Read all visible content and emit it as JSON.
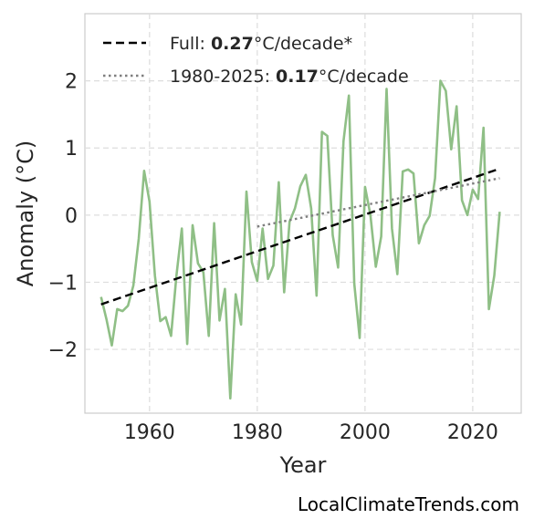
{
  "chart_data": {
    "type": "line",
    "title": "",
    "xlabel": "Year",
    "ylabel": "Anomaly (°C)",
    "xlim": [
      1948,
      2029
    ],
    "ylim": [
      -2.95,
      3.0
    ],
    "xticks": [
      1960,
      1980,
      2000,
      2020
    ],
    "yticks": [
      -2,
      -1,
      0,
      1,
      2
    ],
    "ytick_labels": [
      "−2",
      "−1",
      "0",
      "1",
      "2"
    ],
    "grid": true,
    "legend_position": "top-left",
    "series": [
      {
        "style": "line",
        "color": "#8fbf86",
        "x": [
          1951,
          1952,
          1953,
          1954,
          1955,
          1956,
          1957,
          1958,
          1959,
          1960,
          1961,
          1962,
          1963,
          1964,
          1965,
          1966,
          1967,
          1968,
          1969,
          1970,
          1971,
          1972,
          1973,
          1974,
          1975,
          1976,
          1977,
          1978,
          1979,
          1980,
          1981,
          1982,
          1983,
          1984,
          1985,
          1986,
          1987,
          1988,
          1989,
          1990,
          1991,
          1992,
          1993,
          1994,
          1995,
          1996,
          1997,
          1998,
          1999,
          2000,
          2001,
          2002,
          2003,
          2004,
          2005,
          2006,
          2007,
          2008,
          2009,
          2010,
          2011,
          2012,
          2013,
          2014,
          2015,
          2016,
          2017,
          2018,
          2019,
          2020,
          2021,
          2022,
          2023,
          2024,
          2025
        ],
        "y": [
          -1.22,
          -1.55,
          -1.94,
          -1.4,
          -1.43,
          -1.35,
          -1.05,
          -0.35,
          0.66,
          0.2,
          -0.9,
          -1.58,
          -1.52,
          -1.8,
          -0.9,
          -0.2,
          -1.92,
          -0.15,
          -0.72,
          -0.85,
          -1.8,
          -0.12,
          -1.57,
          -1.1,
          -2.73,
          -1.18,
          -1.63,
          0.35,
          -0.7,
          -0.98,
          -0.2,
          -0.95,
          -0.75,
          0.49,
          -1.15,
          -0.1,
          0.1,
          0.43,
          0.6,
          0.1,
          -1.2,
          1.24,
          1.18,
          -0.3,
          -0.78,
          1.1,
          1.78,
          -1.02,
          -1.83,
          0.42,
          0.0,
          -0.77,
          -0.32,
          1.88,
          -0.2,
          -0.88,
          0.65,
          0.68,
          0.62,
          -0.42,
          -0.15,
          -0.01,
          0.55,
          2.0,
          1.85,
          0.98,
          1.62,
          0.22,
          0.0,
          0.38,
          0.24,
          1.3,
          -1.4,
          -0.9,
          0.05
        ]
      },
      {
        "name": "Full",
        "style": "dashed",
        "color": "#000000",
        "x": [
          1951,
          2025
        ],
        "y": [
          -1.33,
          0.69
        ]
      },
      {
        "name": "1980-2025",
        "style": "dotted",
        "color": "#7f7f7f",
        "x": [
          1980,
          2025
        ],
        "y": [
          -0.17,
          0.55
        ]
      }
    ],
    "legend": [
      {
        "prefix": "Full: ",
        "value": "0.27",
        "suffix": "°C/decade*",
        "style": "dashed",
        "color": "#000000"
      },
      {
        "prefix": "1980-2025: ",
        "value": "0.17",
        "suffix": "°C/decade",
        "style": "dotted",
        "color": "#7f7f7f"
      }
    ]
  },
  "footer": "LocalClimateTrends.com"
}
